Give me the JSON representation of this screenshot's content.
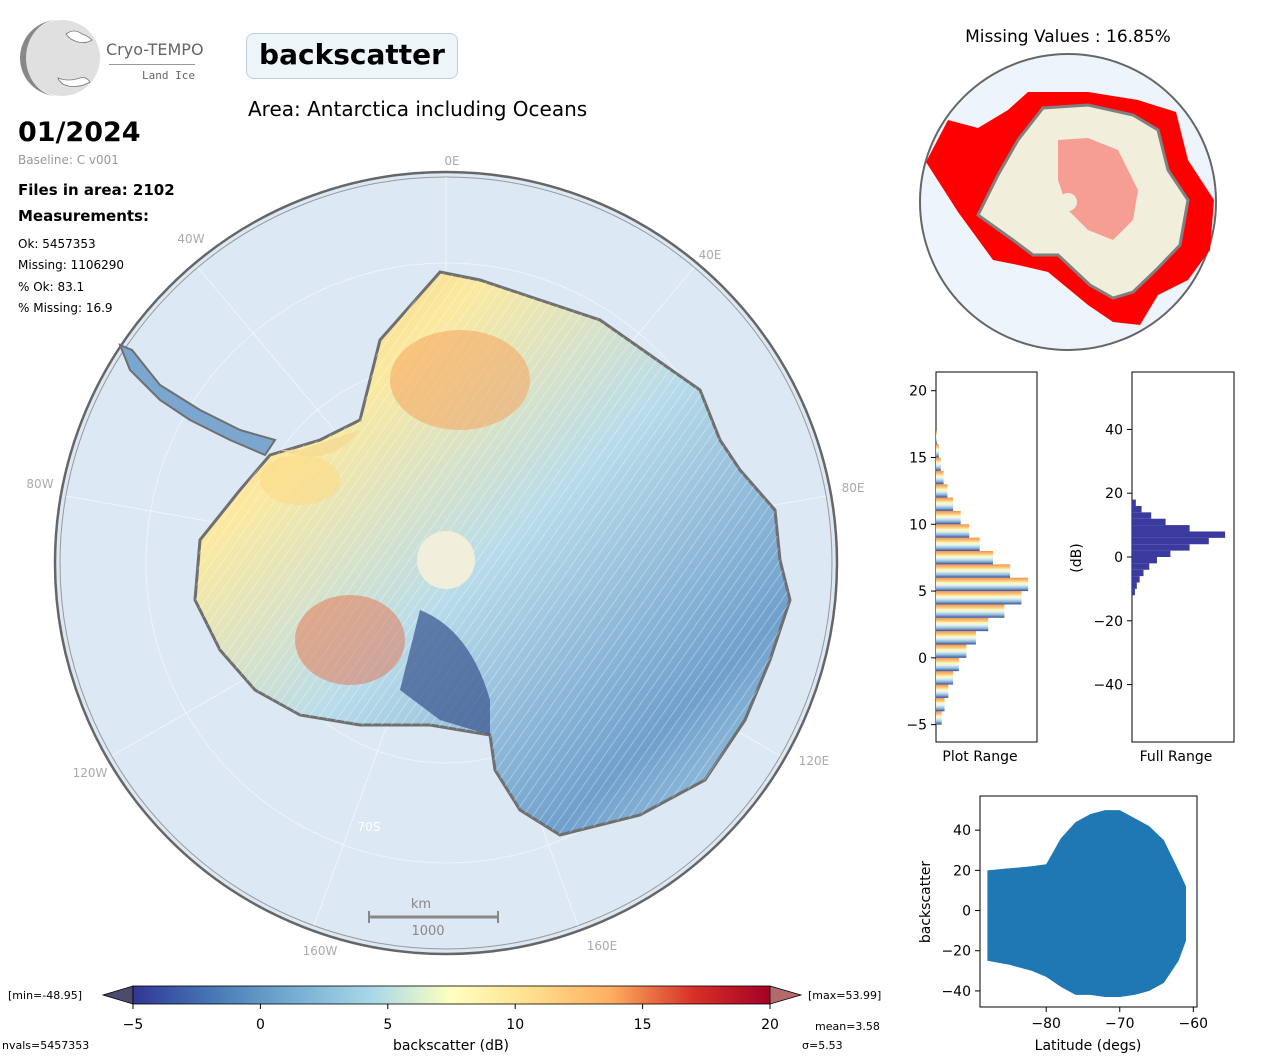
{
  "header": {
    "logo_name": "Cryo-TEMPO",
    "logo_sub": "Land Ice",
    "title": "backscatter",
    "area": "Area: Antarctica including Oceans",
    "date": "01/2024",
    "baseline": "Baseline: C v001",
    "files": "Files in area: 2102",
    "measurements_title": "Measurements:",
    "measurements": [
      "Ok: 5457353",
      "Missing: 1106290",
      "% Ok: 83.1",
      "% Missing: 16.9"
    ]
  },
  "map": {
    "lon_labels": [
      "0E",
      "40E",
      "80E",
      "120E",
      "160E",
      "160W",
      "120W",
      "80W",
      "40W"
    ],
    "lat_label": "70S",
    "scale_unit": "km",
    "scale_value": "1000"
  },
  "missing_map": {
    "title": "Missing Values : 16.85%"
  },
  "colors": {
    "ocean": "#dce8f4",
    "ice_mid": "#c6e3ef",
    "missing": "#ff0000",
    "land_ok": "#f1eedc",
    "hist_full": "#3b3b9f",
    "scatter": "#1f77b4"
  },
  "colorbar": {
    "min_label": "[min=-48.95]",
    "max_label": "[max=53.99]",
    "ticks": [
      "−5",
      "0",
      "5",
      "10",
      "15",
      "20"
    ],
    "xlabel": "backscatter (dB)",
    "nvals": "nvals=5457353",
    "mean": "mean=3.58",
    "sigma": "σ=5.53"
  },
  "chart_data": [
    {
      "type": "bar",
      "orientation": "horizontal",
      "xlabel": "Plot Range",
      "ylim": [
        -6.3,
        21.4
      ],
      "yticks": [
        "−5",
        "0",
        "5",
        "10",
        "15",
        "20"
      ],
      "bins": [
        -5,
        -4,
        -3,
        -2,
        -1,
        0,
        1,
        2,
        3,
        4,
        5,
        6,
        7,
        8,
        9,
        10,
        11,
        12,
        13,
        14,
        15,
        16
      ],
      "values": [
        0.06,
        0.09,
        0.13,
        0.18,
        0.24,
        0.32,
        0.42,
        0.55,
        0.72,
        0.9,
        0.97,
        0.78,
        0.6,
        0.46,
        0.35,
        0.26,
        0.18,
        0.12,
        0.08,
        0.05,
        0.03,
        0.01
      ]
    },
    {
      "type": "bar",
      "orientation": "horizontal",
      "xlabel": "Full Range",
      "ylabel": "(dB)",
      "ylim": [
        -58,
        58
      ],
      "yticks": [
        "−40",
        "−20",
        "0",
        "20",
        "40"
      ],
      "bins": [
        -12,
        -10,
        -8,
        -6,
        -4,
        -2,
        0,
        2,
        4,
        6,
        8,
        10,
        12,
        14,
        16
      ],
      "values": [
        0.03,
        0.05,
        0.08,
        0.12,
        0.18,
        0.26,
        0.4,
        0.6,
        0.8,
        0.97,
        0.6,
        0.35,
        0.2,
        0.1,
        0.04
      ]
    },
    {
      "type": "scatter",
      "xlabel": "Latitude (degs)",
      "ylabel": "backscatter",
      "xlim": [
        -89,
        -59.5
      ],
      "ylim": [
        -48,
        57
      ],
      "xticks": [
        "−80",
        "−70",
        "−60"
      ],
      "yticks": [
        "−40",
        "−20",
        "0",
        "20",
        "40"
      ],
      "envelope": {
        "lat": [
          -88,
          -85,
          -82,
          -80,
          -78,
          -76,
          -74,
          -72,
          -70,
          -68,
          -66,
          -64,
          -62,
          -61
        ],
        "upper": [
          20,
          21,
          22,
          23,
          36,
          44,
          48,
          50,
          50,
          46,
          42,
          35,
          20,
          12
        ],
        "lower": [
          -25,
          -27,
          -30,
          -33,
          -38,
          -42,
          -42,
          -43,
          -43,
          -42,
          -40,
          -36,
          -25,
          -15
        ]
      }
    }
  ]
}
